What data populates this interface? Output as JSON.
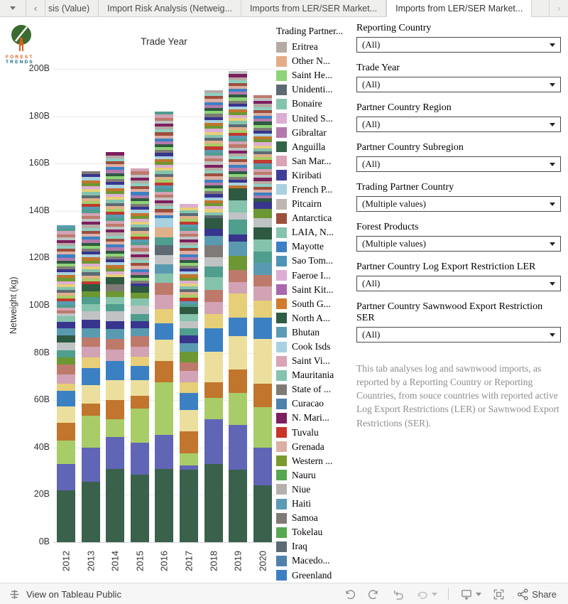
{
  "tabs": {
    "items": [
      {
        "label": "sis (Value)"
      },
      {
        "label": "Import Risk Analysis (Netweig..."
      },
      {
        "label": "Imports from LER/SER Market..."
      },
      {
        "label": "Imports from LER/SER Market..."
      }
    ],
    "active_index": 3
  },
  "logo": {
    "line1": "FOREST",
    "line2": "TRENDS"
  },
  "chart_data": {
    "type": "bar",
    "stacked": true,
    "title": "Trade Year",
    "xlabel": "",
    "ylabel": "Netweight (kg)",
    "ylim_B": [
      0,
      200
    ],
    "grid": true,
    "legend_position": "right",
    "yticks": [
      {
        "v": 0,
        "label": "0B"
      },
      {
        "v": 20,
        "label": "20B"
      },
      {
        "v": 40,
        "label": "40B"
      },
      {
        "v": 60,
        "label": "60B"
      },
      {
        "v": 80,
        "label": "80B"
      },
      {
        "v": 100,
        "label": "100B"
      },
      {
        "v": 120,
        "label": "120B"
      },
      {
        "v": 140,
        "label": "140B"
      },
      {
        "v": 160,
        "label": "160B"
      },
      {
        "v": 180,
        "label": "180B"
      },
      {
        "v": 200,
        "label": "200B"
      }
    ],
    "categories": [
      "2012",
      "2013",
      "2014",
      "2015",
      "2016",
      "2017",
      "2018",
      "2019",
      "2020"
    ],
    "totals_B": [
      134,
      157,
      165,
      158,
      182,
      143,
      191,
      199,
      189
    ],
    "note": "Stacked netweight (kg) of log and sawnwood imports by trade year, split across ~38 trading-partner segments; segment values below are estimated from pixel heights (units: billions of kg).",
    "palette": [
      "#3a614c",
      "#6165b5",
      "#a8cd68",
      "#c1752d",
      "#ecdf9d",
      "#3c80c4",
      "#e6cf78",
      "#d2a3b4",
      "#bd7a6b",
      "#6d9733",
      "#5a9ab1",
      "#37358e",
      "#4f9e8e",
      "#bfc3c4",
      "#2e5a41",
      "#9d4f3c",
      "#85c3ad",
      "#a9d1e0",
      "#c0392e",
      "#7f7a76",
      "#b479ab",
      "#5d6a74",
      "#e0b08a",
      "#b5aba4",
      "#8ed377",
      "#dcaed3",
      "#7c1f5e",
      "#8fd0c3",
      "#55a84f",
      "#dcafa4"
    ],
    "top_cycle": [
      13,
      8,
      7,
      12,
      10,
      18,
      2,
      22,
      21,
      16,
      6,
      25,
      9,
      3,
      17,
      11,
      19,
      24,
      14,
      20,
      5,
      29,
      15,
      27,
      23,
      26
    ],
    "bars": [
      {
        "year": "2012",
        "total_B": 134,
        "base": [
          [
            0,
            22
          ],
          [
            1,
            11
          ],
          [
            2,
            10
          ],
          [
            3,
            7.5
          ],
          [
            4,
            7
          ],
          [
            5,
            6.5
          ]
        ],
        "mid": [
          [
            6,
            3
          ],
          [
            7,
            4
          ],
          [
            8,
            4
          ],
          [
            9,
            3
          ],
          [
            12,
            3
          ],
          [
            13,
            3.5
          ],
          [
            14,
            3
          ],
          [
            10,
            3
          ],
          [
            11,
            2.5
          ],
          [
            16,
            2.5
          ]
        ],
        "tops": {
          "count": 31,
          "each": 1.24,
          "offset": 0
        }
      },
      {
        "year": "2013",
        "total_B": 157,
        "base": [
          [
            0,
            25.5
          ],
          [
            1,
            14.5
          ],
          [
            2,
            13.5
          ],
          [
            3,
            5
          ],
          [
            4,
            8
          ],
          [
            5,
            7
          ]
        ],
        "mid": [
          [
            6,
            4.5
          ],
          [
            7,
            4.5
          ],
          [
            8,
            4
          ],
          [
            10,
            4
          ],
          [
            11,
            3.5
          ],
          [
            13,
            3.5
          ],
          [
            16,
            3
          ],
          [
            12,
            3
          ],
          [
            9,
            2.5
          ],
          [
            14,
            3
          ]
        ],
        "tops": {
          "count": 38,
          "each": 1.26,
          "offset": 5
        }
      },
      {
        "year": "2014",
        "total_B": 165,
        "base": [
          [
            0,
            31
          ],
          [
            1,
            13.5
          ],
          [
            2,
            7.5
          ],
          [
            3,
            8
          ],
          [
            4,
            8.5
          ],
          [
            5,
            8
          ]
        ],
        "mid": [
          [
            7,
            5
          ],
          [
            8,
            4.5
          ],
          [
            10,
            4
          ],
          [
            11,
            3.5
          ],
          [
            13,
            4
          ],
          [
            12,
            3
          ],
          [
            16,
            3
          ],
          [
            9,
            2.5
          ],
          [
            19,
            3
          ],
          [
            14,
            3
          ]
        ],
        "tops": {
          "count": 42,
          "each": 1.26,
          "offset": 10
        }
      },
      {
        "year": "2015",
        "total_B": 158,
        "base": [
          [
            0,
            28.5
          ],
          [
            1,
            13.5
          ],
          [
            2,
            14.5
          ],
          [
            3,
            5.5
          ],
          [
            4,
            6.5
          ],
          [
            5,
            6
          ]
        ],
        "mid": [
          [
            6,
            4
          ],
          [
            7,
            4
          ],
          [
            8,
            4.5
          ],
          [
            10,
            3.5
          ],
          [
            11,
            3
          ],
          [
            12,
            3
          ],
          [
            13,
            3.5
          ],
          [
            16,
            3
          ],
          [
            9,
            2.5
          ],
          [
            14,
            2.5
          ]
        ],
        "tops": {
          "count": 40,
          "each": 1.25,
          "offset": 15
        }
      },
      {
        "year": "2016",
        "total_B": 182,
        "base": [
          [
            0,
            31
          ],
          [
            1,
            14.5
          ],
          [
            2,
            22
          ],
          [
            3,
            9
          ],
          [
            4,
            9
          ],
          [
            5,
            7
          ]
        ],
        "mid": [
          [
            6,
            6
          ],
          [
            7,
            6
          ],
          [
            8,
            5
          ],
          [
            16,
            4
          ],
          [
            10,
            4
          ],
          [
            13,
            4
          ],
          [
            21,
            4
          ],
          [
            12,
            3.5
          ],
          [
            22,
            4
          ],
          [
            17,
            4
          ]
        ],
        "tops": {
          "count": 36,
          "each": 1.25,
          "offset": 20
        }
      },
      {
        "year": "2017",
        "total_B": 143,
        "base": [
          [
            0,
            30.5
          ],
          [
            1,
            2
          ],
          [
            2,
            5
          ],
          [
            3,
            9.5
          ],
          [
            4,
            9
          ],
          [
            5,
            7
          ]
        ],
        "mid": [
          [
            6,
            4.5
          ],
          [
            7,
            5
          ],
          [
            8,
            3.5
          ],
          [
            9,
            4.5
          ],
          [
            10,
            3.5
          ],
          [
            11,
            3.5
          ],
          [
            12,
            3
          ],
          [
            13,
            3
          ],
          [
            16,
            3
          ],
          [
            14,
            3
          ]
        ],
        "tops": {
          "count": 35,
          "each": 1.24,
          "offset": 3
        }
      },
      {
        "year": "2018",
        "total_B": 191,
        "base": [
          [
            0,
            33
          ],
          [
            1,
            19
          ],
          [
            2,
            9
          ],
          [
            3,
            6.5
          ],
          [
            4,
            13
          ],
          [
            5,
            10
          ]
        ],
        "mid": [
          [
            6,
            6
          ],
          [
            7,
            5
          ],
          [
            8,
            5
          ],
          [
            16,
            5.5
          ],
          [
            12,
            4.5
          ],
          [
            13,
            4
          ],
          [
            19,
            5
          ],
          [
            10,
            4
          ],
          [
            11,
            3
          ],
          [
            14,
            4.5
          ]
        ],
        "tops": {
          "count": 43,
          "each": 1.26,
          "offset": 8
        }
      },
      {
        "year": "2019",
        "total_B": 199,
        "base": [
          [
            0,
            30.5
          ],
          [
            1,
            19
          ],
          [
            2,
            13.5
          ],
          [
            3,
            10
          ],
          [
            4,
            14
          ],
          [
            5,
            8
          ]
        ],
        "mid": [
          [
            6,
            10
          ],
          [
            7,
            5
          ],
          [
            8,
            5
          ],
          [
            9,
            6
          ],
          [
            10,
            6
          ],
          [
            11,
            3
          ],
          [
            12,
            6.5
          ],
          [
            13,
            3
          ],
          [
            16,
            5
          ],
          [
            14,
            5
          ]
        ],
        "tops": {
          "count": 40,
          "each": 1.24,
          "offset": 13
        }
      },
      {
        "year": "2020",
        "total_B": 189,
        "base": [
          [
            0,
            24
          ],
          [
            1,
            16
          ],
          [
            2,
            17
          ],
          [
            3,
            10
          ],
          [
            4,
            19
          ],
          [
            5,
            9
          ]
        ],
        "mid": [
          [
            6,
            7
          ],
          [
            7,
            6
          ],
          [
            8,
            5
          ],
          [
            10,
            5
          ],
          [
            12,
            5
          ],
          [
            16,
            5
          ],
          [
            14,
            5
          ],
          [
            13,
            4
          ],
          [
            9,
            4
          ],
          [
            11,
            3
          ]
        ],
        "tops": {
          "count": 36,
          "each": 1.25,
          "offset": 18
        }
      }
    ]
  },
  "legend": {
    "title": "Trading Partner...",
    "items": [
      {
        "label": "Eritrea",
        "color": "#b5aba4"
      },
      {
        "label": "Other N...",
        "color": "#e5ad85"
      },
      {
        "label": "Saint He...",
        "color": "#8ed377"
      },
      {
        "label": "Unidenti...",
        "color": "#5d6a74"
      },
      {
        "label": "Bonaire",
        "color": "#85c3ad"
      },
      {
        "label": "United S...",
        "color": "#dcaed3"
      },
      {
        "label": "Gibraltar",
        "color": "#b479ab"
      },
      {
        "label": "Anguilla",
        "color": "#336448"
      },
      {
        "label": "San Mar...",
        "color": "#d9a4b4"
      },
      {
        "label": "Kiribati",
        "color": "#3f3e99"
      },
      {
        "label": "French P...",
        "color": "#a9d1e0"
      },
      {
        "label": "Pitcairn",
        "color": "#beb6b0"
      },
      {
        "label": "Antarctica",
        "color": "#9d4f3c"
      },
      {
        "label": "LAIA, N...",
        "color": "#85c3ad"
      },
      {
        "label": "Mayotte",
        "color": "#3d7fc4"
      },
      {
        "label": "Sao Tom...",
        "color": "#4f93b8"
      },
      {
        "label": "Faeroe I...",
        "color": "#dcaed3"
      },
      {
        "label": "Saint Kit...",
        "color": "#aa67ad"
      },
      {
        "label": "South G...",
        "color": "#d07c2c"
      },
      {
        "label": "North A...",
        "color": "#2e5c44"
      },
      {
        "label": "Bhutan",
        "color": "#5b9bb5"
      },
      {
        "label": "Cook Isds",
        "color": "#a9d1e0"
      },
      {
        "label": "Saint Vi...",
        "color": "#d9a4b4"
      },
      {
        "label": "Mauritania",
        "color": "#85c3ad"
      },
      {
        "label": "State of ...",
        "color": "#7f7a76"
      },
      {
        "label": "Curacao",
        "color": "#4f81ad"
      },
      {
        "label": "N. Mari...",
        "color": "#7c1f5e"
      },
      {
        "label": "Tuvalu",
        "color": "#c8342a"
      },
      {
        "label": "Grenada",
        "color": "#dcafa4"
      },
      {
        "label": "Western ...",
        "color": "#7a9a2e"
      },
      {
        "label": "Nauru",
        "color": "#55a84f"
      },
      {
        "label": "Niue",
        "color": "#b5b0ac"
      },
      {
        "label": "Haiti",
        "color": "#5b9bb5"
      },
      {
        "label": "Samoa",
        "color": "#7f7a76"
      },
      {
        "label": "Tokelau",
        "color": "#55a84f"
      },
      {
        "label": "Iraq",
        "color": "#5d6a74"
      },
      {
        "label": "Macedo...",
        "color": "#4f81ad"
      },
      {
        "label": "Greenland",
        "color": "#3d7fc4"
      }
    ]
  },
  "filters": [
    {
      "label": "Reporting Country",
      "value": "(All)"
    },
    {
      "label": "Trade Year",
      "value": "(All)"
    },
    {
      "label": "Partner Country Region",
      "value": "(All)"
    },
    {
      "label": "Partner Country Subregion",
      "value": "(All)"
    },
    {
      "label": "Trading Partner Country",
      "value": "(Multiple values)"
    },
    {
      "label": "Forest Products",
      "value": "(Multiple values)"
    },
    {
      "label": "Partner Country Log Export Restriction LER",
      "value": "(All)"
    },
    {
      "label": "Partner Country Sawnwood Export Restriction SER",
      "value": "(All)"
    }
  ],
  "description": "This tab analyses log and sawnwood imports, as reported by a Reporting Country or Reporting Countries, from souce countries with reported active Log Export Restrictions (LER) or Sawnwood Export Restrictions (SER).",
  "toolbar": {
    "view_label": "View on Tableau Public",
    "share_label": "Share"
  }
}
